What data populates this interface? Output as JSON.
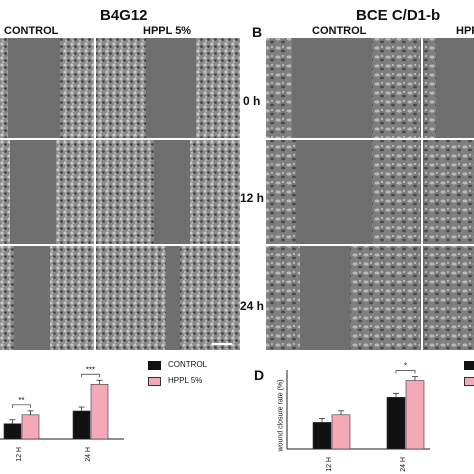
{
  "figure": {
    "left_title": "B4G12",
    "right_title": "BCE C/D1-b",
    "left_col_labels": [
      "CONTROL",
      "HPPL 5%"
    ],
    "right_panel_letter": "B",
    "right_col_labels": [
      "CONTROL",
      "HPP"
    ],
    "row_labels": [
      "0 h",
      "12 h",
      "24 h"
    ],
    "right_chart_letter": "D"
  },
  "colors": {
    "control": "#111111",
    "hppl": "#f4a9b6",
    "micrograph_bg": "#6f6f6f"
  },
  "chart_data": [
    {
      "type": "bar",
      "categories": [
        "12 H",
        "24 H"
      ],
      "series": [
        {
          "name": "CONTROL",
          "values": [
            12,
            22
          ]
        },
        {
          "name": "HPPL 5%",
          "values": [
            19,
            43
          ]
        }
      ],
      "ylim": [
        0,
        55
      ],
      "legend": [
        "CONTROL",
        "HPPL 5%"
      ],
      "legend_position": "top-right",
      "significance": [
        "**",
        "***"
      ]
    },
    {
      "type": "bar",
      "categories": [
        "12 H",
        "24 H"
      ],
      "series": [
        {
          "name": "CONTROL",
          "values": [
            35,
            68
          ]
        },
        {
          "name": "HPPL 5%",
          "values": [
            45,
            90
          ]
        }
      ],
      "ylabel": "wound closure rate (%)",
      "ylim": [
        0,
        100
      ],
      "significance": [
        "*"
      ]
    }
  ]
}
